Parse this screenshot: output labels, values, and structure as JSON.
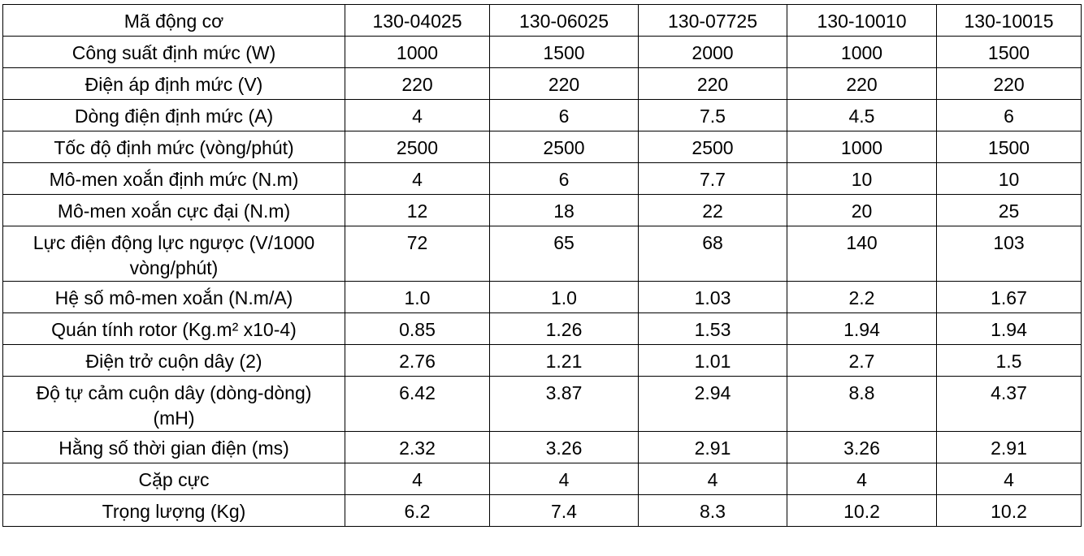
{
  "table": {
    "header": [
      "Mã động cơ",
      "130-04025",
      "130-06025",
      "130-07725",
      "130-10010",
      "130-10015"
    ],
    "rows": [
      [
        "Công suất định mức (W)",
        "1000",
        "1500",
        "2000",
        "1000",
        "1500"
      ],
      [
        "Điện áp định mức (V)",
        "220",
        "220",
        "220",
        "220",
        "220"
      ],
      [
        "Dòng điện định mức (A)",
        "4",
        "6",
        "7.5",
        "4.5",
        "6"
      ],
      [
        "Tốc độ định mức (vòng/phút)",
        "2500",
        "2500",
        "2500",
        "1000",
        "1500"
      ],
      [
        "Mô-men xoắn định mức (N.m)",
        "4",
        "6",
        "7.7",
        "10",
        "10"
      ],
      [
        "Mô-men xoắn cực đại (N.m)",
        "12",
        "18",
        "22",
        "20",
        "25"
      ],
      [
        "Lực điện động lực ngược (V/1000 vòng/phút)",
        "72",
        "65",
        "68",
        "140",
        "103"
      ],
      [
        "Hệ số mô-men xoắn (N.m/A)",
        "1.0",
        "1.0",
        "1.03",
        "2.2",
        "1.67"
      ],
      [
        "Quán tính rotor (Kg.m² x10-4)",
        "0.85",
        "1.26",
        "1.53",
        "1.94",
        "1.94"
      ],
      [
        "Điện trở cuộn dây (2)",
        "2.76",
        "1.21",
        "1.01",
        "2.7",
        "1.5"
      ],
      [
        "Độ tự cảm cuộn dây (dòng-dòng) (mH)",
        "6.42",
        "3.87",
        "2.94",
        "8.8",
        "4.37"
      ],
      [
        "Hằng số thời gian điện (ms)",
        "2.32",
        "3.26",
        "2.91",
        "3.26",
        "2.91"
      ],
      [
        "Cặp cực",
        "4",
        "4",
        "4",
        "4",
        "4"
      ],
      [
        "Trọng lượng (Kg)",
        "6.2",
        "7.4",
        "8.3",
        "10.2",
        "10.2"
      ]
    ]
  }
}
